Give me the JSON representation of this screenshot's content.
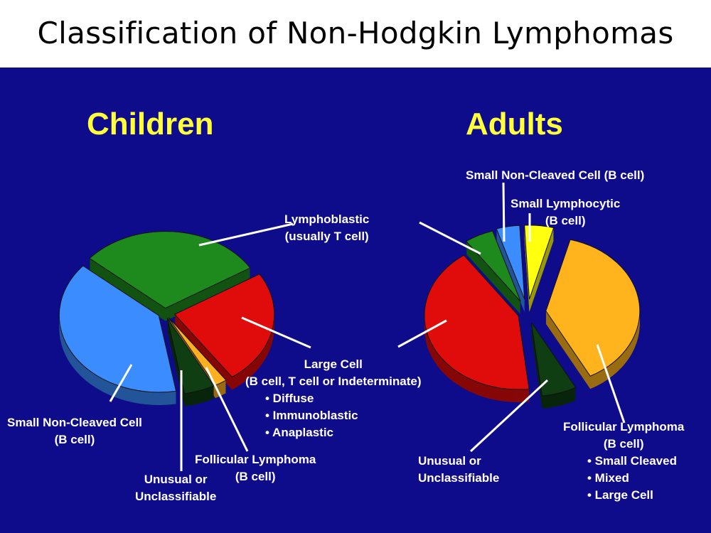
{
  "slide_title": "Classification of Non-Hodgkin Lymphomas",
  "chart_data": [
    {
      "type": "pie",
      "title": "Children",
      "categories": [
        "Small Non-Cleaved Cell",
        "Lymphoblastic",
        "Large Cell",
        "Follicular Lymphoma",
        "Unusual or Unclassifiable"
      ],
      "values": [
        39,
        30,
        24,
        2,
        5
      ],
      "colors": [
        "#3a8cff",
        "#1e8a1e",
        "#e00c0c",
        "#ffb020",
        "#0e3e12"
      ],
      "labels": {
        "small_non_cleaved": [
          "Small Non-Cleaved Cell",
          "(B cell)"
        ],
        "lymphoblastic": [
          "Lymphoblastic",
          "(usually T cell)"
        ],
        "large_cell": [
          "Large Cell",
          "(B cell, T cell or Indeterminate)",
          "• Diffuse",
          "• Immunoblastic",
          "• Anaplastic"
        ],
        "follicular": [
          "Follicular Lymphoma",
          "(B cell)"
        ],
        "unusual": [
          "Unusual or",
          "Unclassifiable"
        ]
      }
    },
    {
      "type": "pie",
      "title": "Adults",
      "categories": [
        "Follicular Lymphoma",
        "Unusual or Unclassifiable",
        "Large Cell",
        "Lymphoblastic",
        "Small Non-Cleaved Cell",
        "Small Lymphocytic"
      ],
      "values": [
        38,
        6,
        42,
        5,
        4,
        5
      ],
      "colors": [
        "#ffb41e",
        "#0e3e12",
        "#e00c0c",
        "#1e8a1e",
        "#3a8cff",
        "#ffff10"
      ],
      "labels": {
        "small_non_cleaved": [
          "Small Non-Cleaved Cell (B cell)"
        ],
        "small_lymphocytic": [
          "Small Lymphocytic",
          "(B cell)"
        ],
        "follicular": [
          "Follicular Lymphoma",
          "(B cell)",
          "• Small Cleaved",
          "• Mixed",
          "• Large Cell"
        ],
        "unusual": [
          "Unusual or",
          "Unclassifiable"
        ]
      }
    }
  ]
}
